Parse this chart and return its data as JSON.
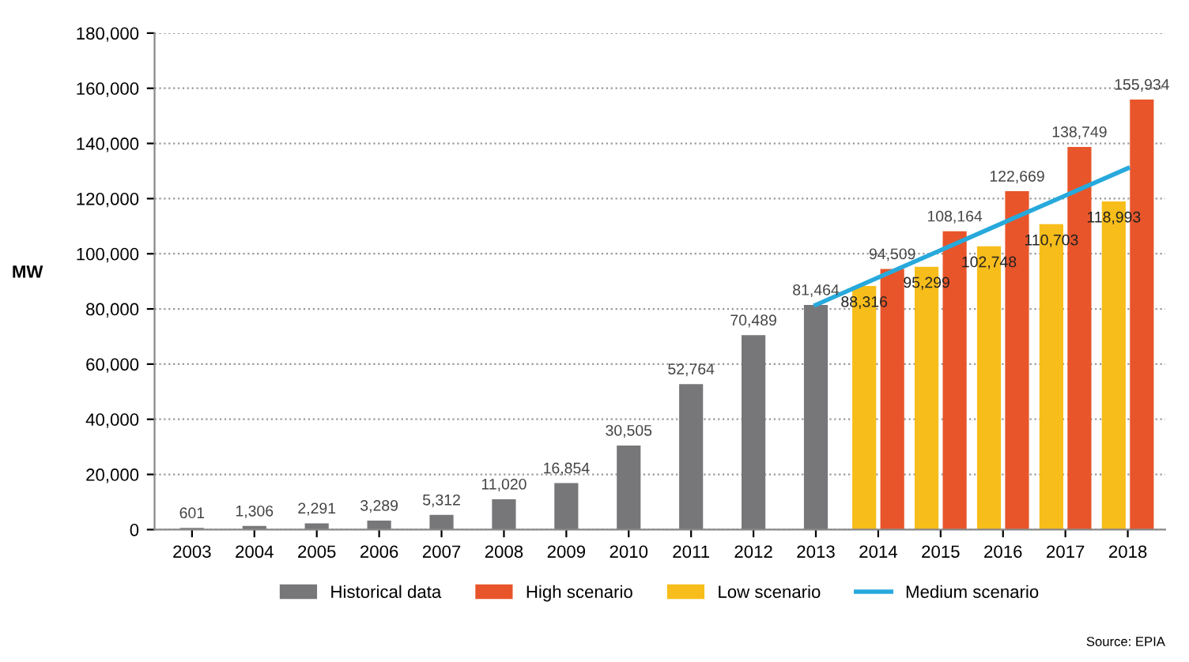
{
  "chart_data": {
    "type": "bar",
    "ylabel": "MW",
    "categories": [
      "2003",
      "2004",
      "2005",
      "2006",
      "2007",
      "2008",
      "2009",
      "2010",
      "2011",
      "2012",
      "2013",
      "2014",
      "2015",
      "2016",
      "2017",
      "2018"
    ],
    "series": [
      {
        "name": "Historical data",
        "color": "#77777a",
        "values": [
          601,
          1306,
          2291,
          3289,
          5312,
          11020,
          16854,
          30505,
          52764,
          70489,
          81464,
          null,
          null,
          null,
          null,
          null
        ],
        "value_labels": [
          "601",
          "1,306",
          "2,291",
          "3,289",
          "5,312",
          "11,020",
          "16,854",
          "30,505",
          "52,764",
          "70,489",
          "81,464",
          null,
          null,
          null,
          null,
          null
        ]
      },
      {
        "name": "High scenario",
        "color": "#e8552a",
        "values": [
          null,
          null,
          null,
          null,
          null,
          null,
          null,
          null,
          null,
          null,
          null,
          94509,
          108164,
          122669,
          138749,
          155934
        ],
        "value_labels": [
          null,
          null,
          null,
          null,
          null,
          null,
          null,
          null,
          null,
          null,
          null,
          "94,509",
          "108,164",
          "122,669",
          "138,749",
          "155,934"
        ]
      },
      {
        "name": "Low scenario",
        "color": "#f7bd1a",
        "values": [
          null,
          null,
          null,
          null,
          null,
          null,
          null,
          null,
          null,
          null,
          null,
          88316,
          95299,
          102748,
          110703,
          118993
        ],
        "value_labels": [
          null,
          null,
          null,
          null,
          null,
          null,
          null,
          null,
          null,
          null,
          null,
          "88,316",
          "95,299",
          "102,748",
          "110,703",
          "118,993"
        ]
      },
      {
        "name": "Medium scenario",
        "type": "line",
        "color": "#27a9dc",
        "values": [
          null,
          null,
          null,
          null,
          null,
          null,
          null,
          null,
          null,
          null,
          81464,
          91400,
          101300,
          111200,
          121100,
          131000
        ]
      }
    ],
    "ylim": [
      0,
      180000
    ],
    "yticks": [
      {
        "value": 0,
        "label": "0"
      },
      {
        "value": 20000,
        "label": "20,000"
      },
      {
        "value": 40000,
        "label": "40,000"
      },
      {
        "value": 60000,
        "label": "60,000"
      },
      {
        "value": 80000,
        "label": "80,000"
      },
      {
        "value": 100000,
        "label": "100,000"
      },
      {
        "value": 120000,
        "label": "120,000"
      },
      {
        "value": 140000,
        "label": "140,000"
      },
      {
        "value": 160000,
        "label": "160,000"
      },
      {
        "value": 180000,
        "label": "180,000"
      }
    ],
    "grid": "y",
    "legend": "bottom",
    "marker": "none",
    "line_style": "solid",
    "annotations": [
      "Source: EPIA"
    ]
  }
}
